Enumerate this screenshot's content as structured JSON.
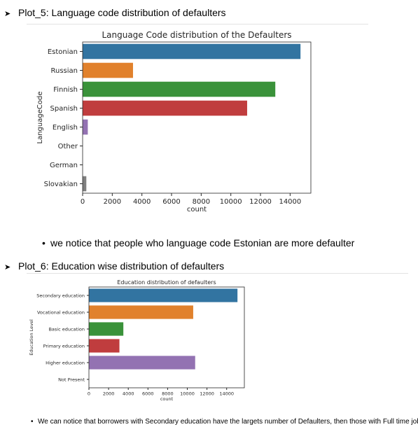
{
  "sections": [
    {
      "heading": "Plot_5: Language code distribution of defaulters",
      "note": "we notice that people who language code Estonian are more defaulter"
    },
    {
      "heading": "Plot_6: Education wise distribution of defaulters",
      "note": "We can notice that borrowers with Secondary education have the largets number of Defaulters, then those with Full time job."
    }
  ],
  "icons": {
    "heading_marker": "arrow-right-icon",
    "list_marker": "bullet-icon"
  },
  "chart_data": [
    {
      "type": "bar",
      "orientation": "horizontal",
      "title": "Language Code distribution of the Defaulters",
      "xlabel": "count",
      "ylabel": "LanguageCode",
      "categories": [
        "Estonian",
        "Russian",
        "Finnish",
        "Spanish",
        "English",
        "Other",
        "German",
        "Slovakian"
      ],
      "values": [
        14700,
        3400,
        13000,
        11100,
        350,
        0,
        0,
        250
      ],
      "colors": [
        "#3274a1",
        "#e1812c",
        "#3a923a",
        "#c03d3e",
        "#9372b2",
        "#845b53",
        "#d684bd",
        "#7f7f7f"
      ],
      "xticks": [
        0,
        2000,
        4000,
        6000,
        8000,
        10000,
        12000,
        14000
      ],
      "xlim": [
        0,
        15400
      ],
      "grid": false
    },
    {
      "type": "bar",
      "orientation": "horizontal",
      "title": "Education distribution of defaulters",
      "xlabel": "count",
      "ylabel": "Education Level",
      "categories": [
        "Secondary education",
        "Vocational education",
        "Basic education",
        "Primary education",
        "Higher education",
        "Not Present"
      ],
      "values": [
        15100,
        10600,
        3500,
        3100,
        10800,
        0
      ],
      "colors": [
        "#3274a1",
        "#e1812c",
        "#3a923a",
        "#c03d3e",
        "#9372b2",
        "#845b53"
      ],
      "xticks": [
        0,
        2000,
        4000,
        6000,
        8000,
        10000,
        12000,
        14000
      ],
      "xlim": [
        0,
        15800
      ],
      "grid": false
    }
  ]
}
